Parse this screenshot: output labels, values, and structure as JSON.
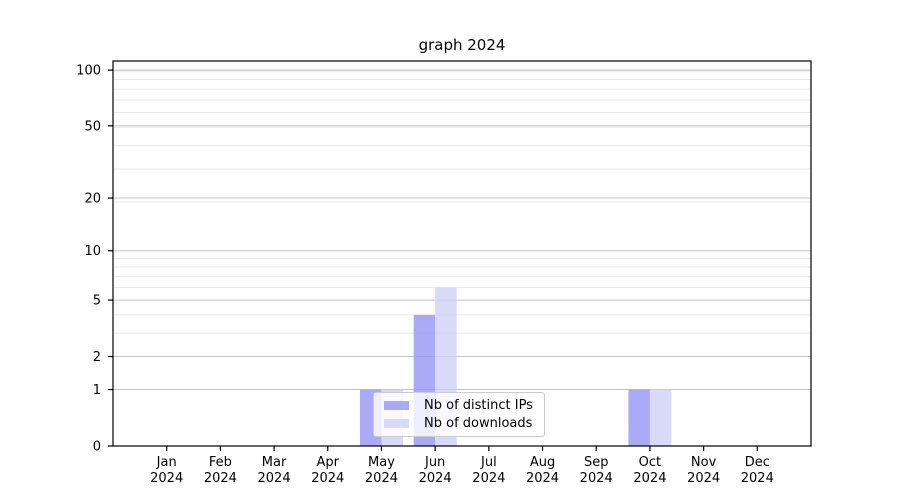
{
  "chart_data": {
    "type": "bar",
    "title": "graph 2024",
    "categories": [
      "Jan",
      "Feb",
      "Mar",
      "Apr",
      "May",
      "Jun",
      "Jul",
      "Aug",
      "Sep",
      "Oct",
      "Nov",
      "Dec"
    ],
    "year_label": "2024",
    "series": [
      {
        "name": "Nb of distinct IPs",
        "color": "#9595f6",
        "values": [
          0,
          0,
          0,
          0,
          1,
          4,
          0,
          0,
          0,
          1,
          0,
          0
        ]
      },
      {
        "name": "Nb of downloads",
        "color": "#d0d0f6",
        "values": [
          0,
          0,
          0,
          0,
          1,
          6,
          0,
          0,
          0,
          1,
          0,
          0
        ]
      }
    ],
    "bar_opacity": 0.8,
    "yscale": "log1p",
    "ylim": [
      0,
      112
    ],
    "y_ticks": [
      0,
      1,
      2,
      5,
      10,
      20,
      50,
      100
    ],
    "y_minor_gridlines": [
      3,
      4,
      6,
      7,
      8,
      9,
      19,
      29,
      39,
      49,
      59,
      69,
      79,
      89,
      99
    ],
    "grid": true,
    "legend_position": "lower center-left, inside plot",
    "colors": {
      "background": "#ffffff",
      "axis": "#000000",
      "major_grid": "#c3c3c3",
      "minor_grid": "#eaeaea",
      "tick_label": "#000000"
    }
  }
}
